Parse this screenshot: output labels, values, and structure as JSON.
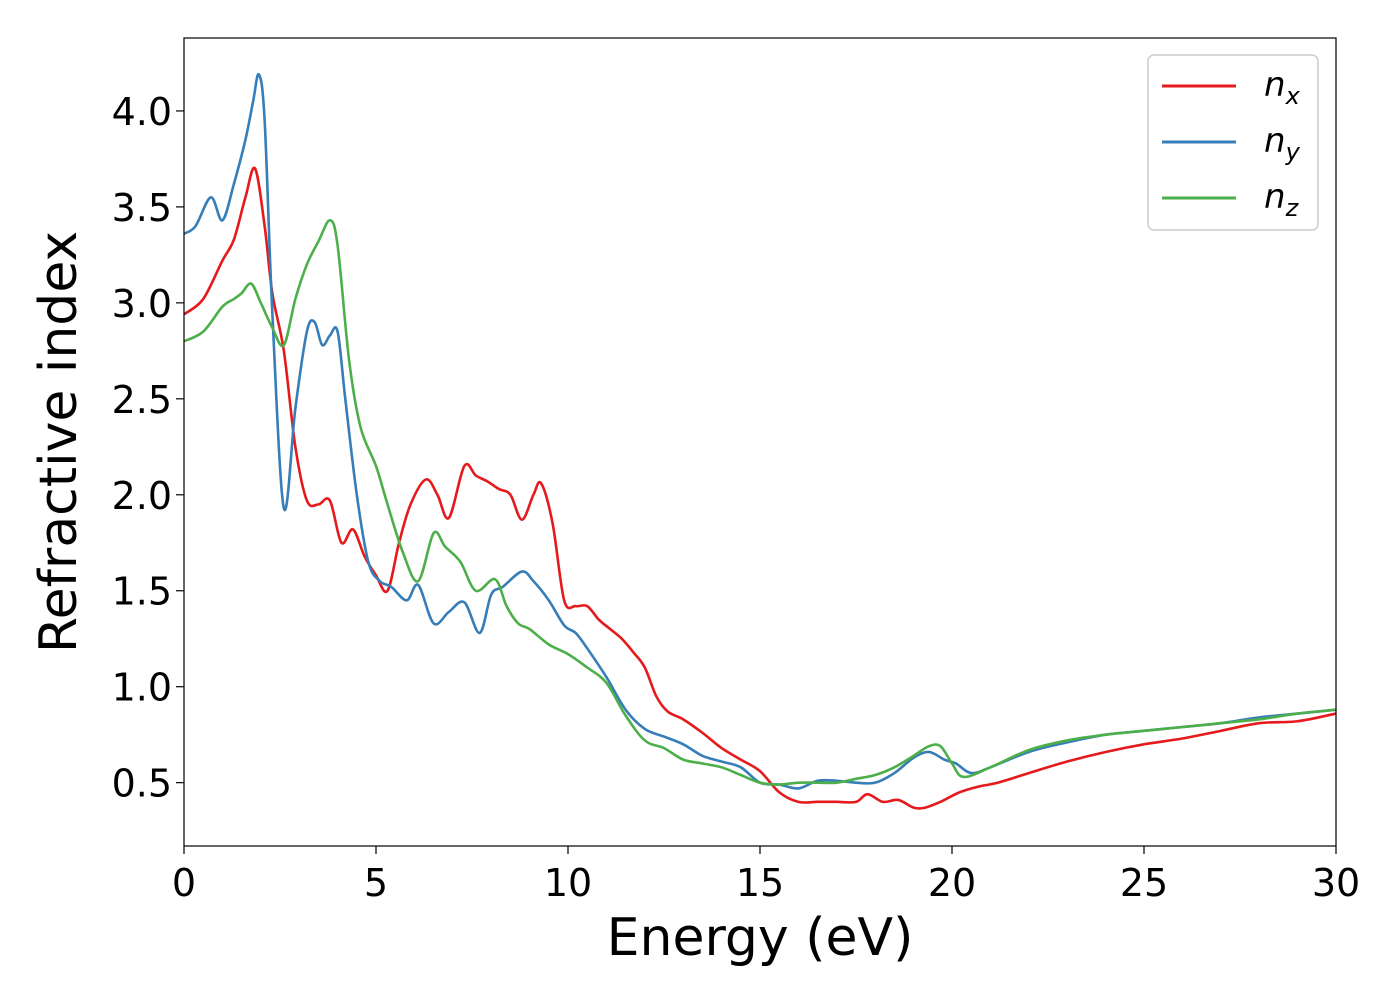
{
  "chart_data": {
    "type": "line",
    "title": "",
    "xlabel": "Energy (eV)",
    "ylabel": "Refractive index",
    "xlim": [
      0,
      30
    ],
    "ylim": [
      0.17,
      4.38
    ],
    "xticks": [
      0,
      5,
      10,
      15,
      20,
      25,
      30
    ],
    "xtick_labels": [
      "0",
      "5",
      "10",
      "15",
      "20",
      "25",
      "30"
    ],
    "yticks": [
      0.5,
      1.0,
      1.5,
      2.0,
      2.5,
      3.0,
      3.5,
      4.0
    ],
    "ytick_labels": [
      "0.5",
      "1.0",
      "1.5",
      "2.0",
      "2.5",
      "3.0",
      "3.5",
      "4.0"
    ],
    "grid": false,
    "legend_position": "top-right",
    "series": [
      {
        "name": "n_x",
        "label_base": "n",
        "label_sub": "x",
        "color": "#e41a1c",
        "x": [
          0,
          0.5,
          1,
          1.3,
          1.6,
          1.85,
          2.1,
          2.3,
          2.6,
          2.9,
          3.2,
          3.5,
          3.8,
          4.1,
          4.4,
          4.7,
          5.0,
          5.3,
          5.6,
          5.9,
          6.3,
          6.6,
          6.9,
          7.3,
          7.6,
          7.9,
          8.2,
          8.5,
          8.8,
          9.1,
          9.3,
          9.6,
          9.9,
          10.2,
          10.5,
          10.8,
          11.1,
          11.4,
          11.7,
          12.0,
          12.3,
          12.6,
          13.0,
          13.5,
          14.0,
          14.5,
          15.0,
          15.5,
          16.0,
          16.5,
          17.0,
          17.5,
          17.8,
          18.2,
          18.6,
          19.0,
          19.3,
          19.7,
          20.2,
          20.7,
          21.2,
          22.0,
          23.0,
          24.0,
          25.0,
          26.0,
          27.0,
          28.0,
          29.0,
          30.0
        ],
        "values": [
          2.94,
          3.02,
          3.22,
          3.33,
          3.55,
          3.7,
          3.4,
          3.05,
          2.75,
          2.25,
          1.97,
          1.95,
          1.97,
          1.75,
          1.82,
          1.68,
          1.58,
          1.5,
          1.75,
          1.95,
          2.08,
          2.0,
          1.88,
          2.15,
          2.1,
          2.07,
          2.03,
          2.0,
          1.87,
          2.0,
          2.06,
          1.85,
          1.45,
          1.42,
          1.42,
          1.35,
          1.3,
          1.25,
          1.18,
          1.1,
          0.95,
          0.87,
          0.83,
          0.76,
          0.68,
          0.62,
          0.56,
          0.45,
          0.4,
          0.4,
          0.4,
          0.4,
          0.44,
          0.4,
          0.41,
          0.37,
          0.37,
          0.4,
          0.45,
          0.48,
          0.5,
          0.55,
          0.61,
          0.66,
          0.7,
          0.73,
          0.77,
          0.81,
          0.82,
          0.86
        ]
      },
      {
        "name": "n_y",
        "label_base": "n",
        "label_sub": "y",
        "color": "#377eb8",
        "x": [
          0,
          0.3,
          0.7,
          1.0,
          1.3,
          1.6,
          1.8,
          1.95,
          2.1,
          2.3,
          2.6,
          2.9,
          3.2,
          3.4,
          3.6,
          3.8,
          4.0,
          4.2,
          4.5,
          4.8,
          5.1,
          5.4,
          5.8,
          6.1,
          6.5,
          6.9,
          7.3,
          7.7,
          8.0,
          8.3,
          8.8,
          9.1,
          9.5,
          9.9,
          10.2,
          10.5,
          11.0,
          11.5,
          12.0,
          12.5,
          13.0,
          13.5,
          14.0,
          14.5,
          15.0,
          15.5,
          16.0,
          16.5,
          17.0,
          17.5,
          18.0,
          18.5,
          19.0,
          19.4,
          19.8,
          20.1,
          20.5,
          21.0,
          22.0,
          23.0,
          24.0,
          25.0,
          26.0,
          27.0,
          28.0,
          29.0,
          30.0
        ],
        "values": [
          3.36,
          3.4,
          3.55,
          3.43,
          3.62,
          3.85,
          4.05,
          4.19,
          3.95,
          2.95,
          1.93,
          2.45,
          2.85,
          2.9,
          2.78,
          2.83,
          2.85,
          2.5,
          2.0,
          1.65,
          1.55,
          1.52,
          1.45,
          1.53,
          1.33,
          1.39,
          1.44,
          1.28,
          1.48,
          1.52,
          1.6,
          1.55,
          1.45,
          1.32,
          1.28,
          1.2,
          1.05,
          0.88,
          0.78,
          0.74,
          0.7,
          0.64,
          0.61,
          0.58,
          0.5,
          0.49,
          0.47,
          0.51,
          0.51,
          0.5,
          0.5,
          0.55,
          0.63,
          0.66,
          0.62,
          0.6,
          0.55,
          0.58,
          0.66,
          0.71,
          0.75,
          0.77,
          0.79,
          0.81,
          0.84,
          0.86,
          0.88
        ]
      },
      {
        "name": "n_z",
        "label_base": "n",
        "label_sub": "z",
        "color": "#4daf4a",
        "x": [
          0,
          0.5,
          1.0,
          1.3,
          1.5,
          1.75,
          2.0,
          2.3,
          2.6,
          2.9,
          3.2,
          3.5,
          3.8,
          4.0,
          4.3,
          4.6,
          5.0,
          5.3,
          5.7,
          6.1,
          6.5,
          6.8,
          7.2,
          7.6,
          8.1,
          8.4,
          8.7,
          9.0,
          9.5,
          10.0,
          10.5,
          11.0,
          11.5,
          12.0,
          12.5,
          13.0,
          13.5,
          14.0,
          14.5,
          15.0,
          15.5,
          16.0,
          16.5,
          17.0,
          17.5,
          18.0,
          18.5,
          19.0,
          19.4,
          19.7,
          20.0,
          20.3,
          21.0,
          22.0,
          23.0,
          24.0,
          25.0,
          26.0,
          27.0,
          28.0,
          29.0,
          30.0
        ],
        "values": [
          2.8,
          2.85,
          2.98,
          3.02,
          3.05,
          3.1,
          3.0,
          2.87,
          2.78,
          3.02,
          3.2,
          3.32,
          3.43,
          3.3,
          2.7,
          2.35,
          2.15,
          1.95,
          1.7,
          1.55,
          1.8,
          1.73,
          1.65,
          1.5,
          1.56,
          1.42,
          1.33,
          1.3,
          1.22,
          1.17,
          1.1,
          1.02,
          0.85,
          0.72,
          0.68,
          0.62,
          0.6,
          0.58,
          0.54,
          0.5,
          0.49,
          0.5,
          0.5,
          0.5,
          0.52,
          0.54,
          0.58,
          0.64,
          0.69,
          0.69,
          0.6,
          0.53,
          0.58,
          0.67,
          0.72,
          0.75,
          0.77,
          0.79,
          0.81,
          0.83,
          0.86,
          0.88
        ]
      }
    ]
  }
}
